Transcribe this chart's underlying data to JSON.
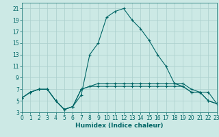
{
  "bg_color": "#cce9e5",
  "grid_color": "#aacfcc",
  "line_color": "#006666",
  "line1_y": [
    5.5,
    6.5,
    7,
    7,
    5,
    3.5,
    4,
    7,
    7.5,
    7.5,
    7.5,
    7.5,
    7.5,
    7.5,
    7.5,
    7.5,
    7.5,
    7.5,
    7.5,
    7.5,
    6.5,
    6.5,
    5,
    4.5
  ],
  "line2_y": [
    5.5,
    6.5,
    7,
    7,
    5,
    3.5,
    4,
    7,
    7.5,
    8,
    8,
    8,
    8,
    8,
    8,
    8,
    8,
    8,
    8,
    8,
    7,
    6.5,
    6.5,
    4.5
  ],
  "line3_y": [
    5.5,
    6.5,
    7,
    7,
    5,
    3.5,
    4,
    6,
    13,
    15,
    19.5,
    20.5,
    21,
    19,
    17.5,
    15.5,
    13,
    11,
    8,
    7.5,
    6.5,
    6.5,
    5,
    4.5
  ],
  "xlabel": "Humidex (Indice chaleur)",
  "xlim": [
    0,
    23
  ],
  "ylim": [
    3,
    22
  ],
  "xticks": [
    0,
    1,
    2,
    3,
    4,
    5,
    6,
    7,
    8,
    9,
    10,
    11,
    12,
    13,
    14,
    15,
    16,
    17,
    18,
    19,
    20,
    21,
    22,
    23
  ],
  "yticks": [
    3,
    5,
    7,
    9,
    11,
    13,
    15,
    17,
    19,
    21
  ],
  "xlabel_fontsize": 6.5,
  "tick_fontsize": 5.5
}
